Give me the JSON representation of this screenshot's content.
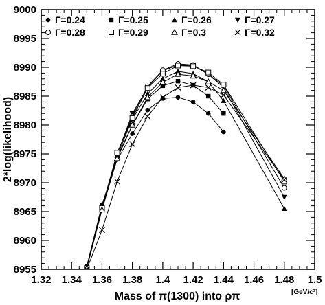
{
  "chart_data": {
    "type": "line",
    "title": "",
    "xlabel": "Mass of π(1300) into ρπ",
    "xunit": "[GeV/c²]",
    "ylabel": "2*log(likelihood)",
    "xlim": [
      1.32,
      1.5
    ],
    "ylim": [
      8955,
      9000
    ],
    "xticks": [
      "1.32",
      "1.34",
      "1.36",
      "1.38",
      "1.4",
      "1.42",
      "1.44",
      "1.46",
      "1.48",
      "1.5"
    ],
    "yticks": [
      "8955",
      "8960",
      "8965",
      "8970",
      "8975",
      "8980",
      "8985",
      "8990",
      "8995",
      "9000"
    ],
    "grid": false,
    "legend_position": "top",
    "x": [
      1.35,
      1.36,
      1.37,
      1.38,
      1.39,
      1.4,
      1.41,
      1.42,
      1.43,
      1.44,
      1.48
    ],
    "series": [
      {
        "name": "Γ=0.24",
        "marker": "filled-circle",
        "values": [
          8955.5,
          8966.2,
          8974.0,
          8978.5,
          8982.6,
          8984.6,
          8984.8,
          8984.0,
          8982.0,
          8978.8,
          null
        ]
      },
      {
        "name": "Γ=0.25",
        "marker": "filled-square",
        "values": [
          8955.5,
          8966.0,
          8974.5,
          8980.0,
          8984.5,
          8986.8,
          8987.6,
          8986.9,
          8985.0,
          8982.0,
          null
        ]
      },
      {
        "name": "Γ=0.26",
        "marker": "filled-triangle-up",
        "values": [
          8955.3,
          8965.8,
          8974.7,
          8981.0,
          8985.4,
          8988.0,
          8989.3,
          8988.9,
          8987.5,
          8984.2,
          8965.5
        ]
      },
      {
        "name": "Γ=0.27",
        "marker": "filled-triangle-down",
        "values": [
          8955.2,
          8965.5,
          8974.9,
          8982.0,
          8986.5,
          8989.4,
          8990.4,
          8990.3,
          8988.8,
          8986.5,
          8967.5
        ]
      },
      {
        "name": "Γ=0.28",
        "marker": "open-circle",
        "values": [
          8955.3,
          8965.8,
          8975.1,
          8981.5,
          8986.7,
          8989.5,
          8990.6,
          8990.4,
          8988.8,
          8986.8,
          8969.1
        ]
      },
      {
        "name": "Γ=0.29",
        "marker": "open-square",
        "values": [
          8955.2,
          8965.6,
          8975.2,
          8981.2,
          8986.4,
          8988.9,
          8990.3,
          8990.2,
          8989.1,
          8987.0,
          8970.2
        ]
      },
      {
        "name": "Γ=0.3",
        "marker": "open-triangle-up",
        "values": [
          8955.2,
          8965.3,
          8974.2,
          8980.0,
          8984.8,
          8987.4,
          8988.8,
          8988.5,
          8987.5,
          8986.0,
          8970.7
        ]
      },
      {
        "name": "Γ=0.32",
        "marker": "cross",
        "values": [
          8955.0,
          8961.8,
          8970.2,
          8976.7,
          8981.5,
          8984.8,
          8986.5,
          8986.9,
          8986.5,
          8985.2,
          8970.5
        ]
      }
    ]
  }
}
